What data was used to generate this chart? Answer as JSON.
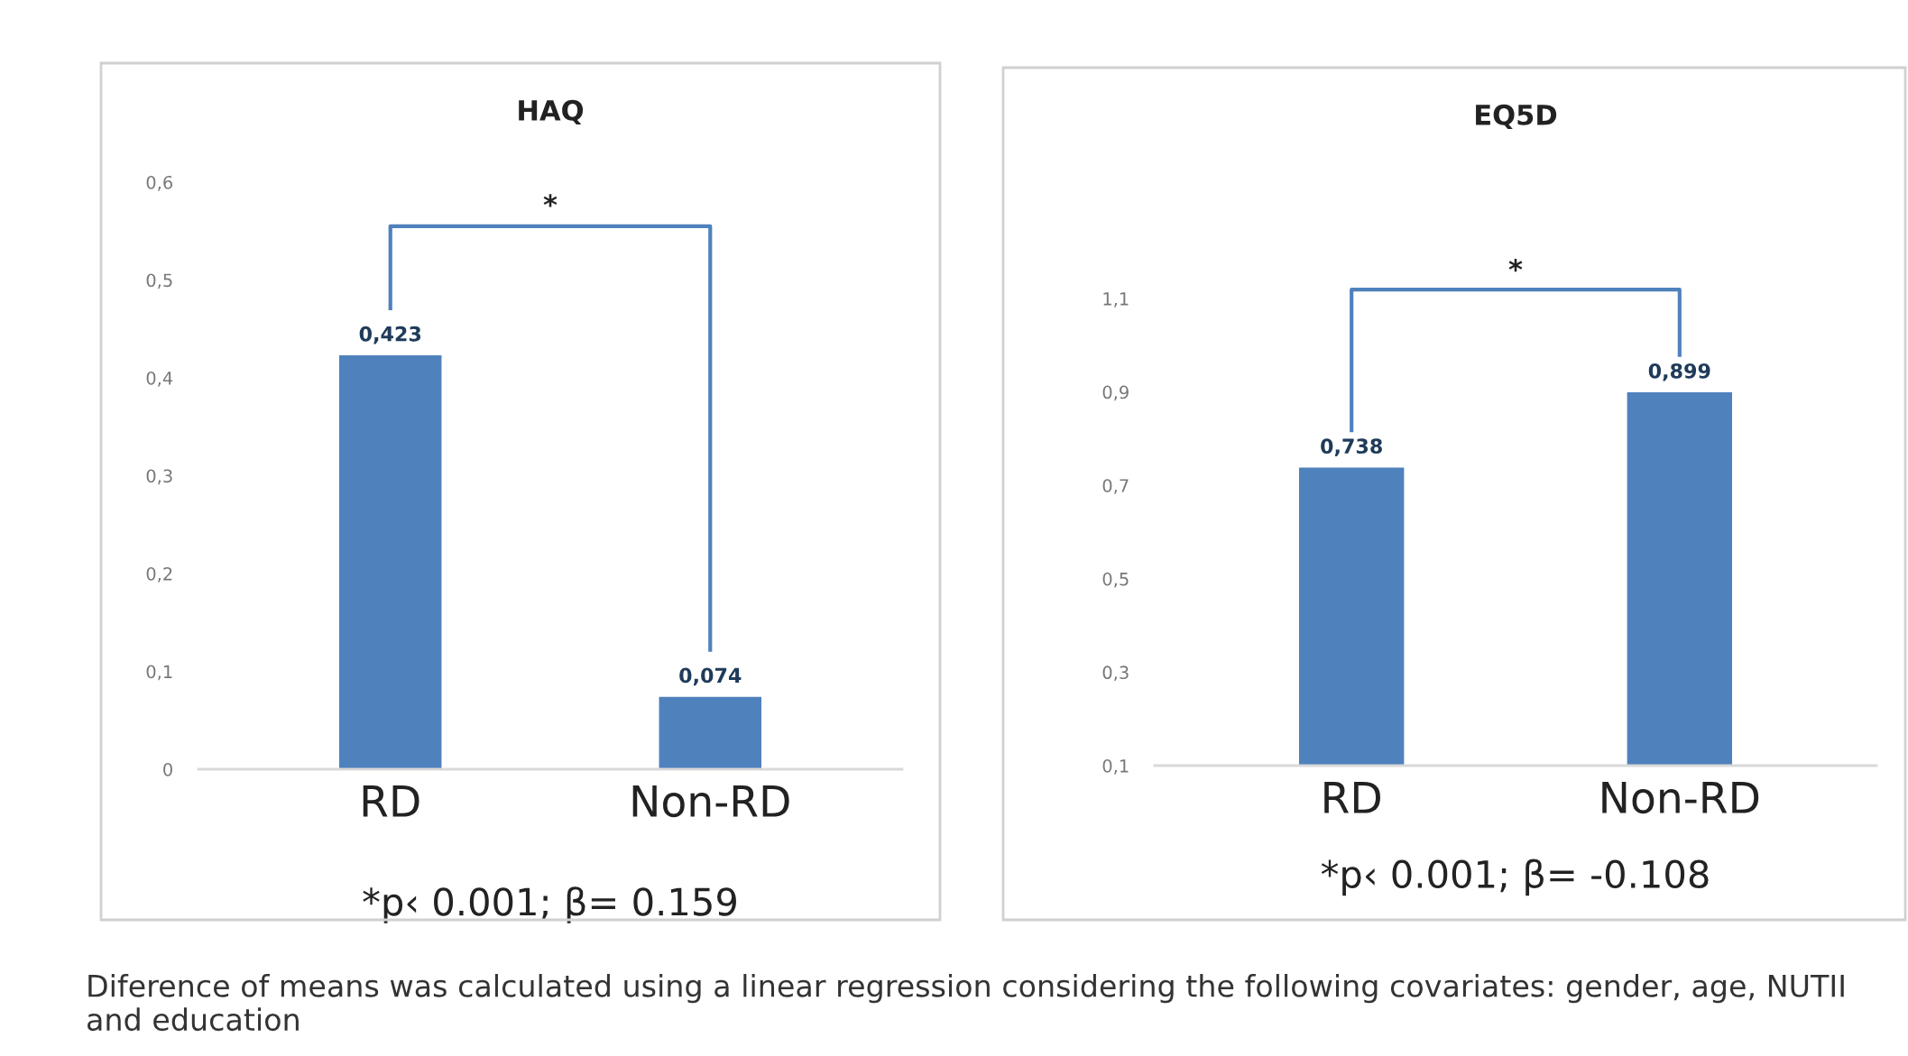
{
  "chart_data": [
    {
      "type": "bar",
      "title": "HAQ",
      "categories": [
        "RD",
        "Non-RD"
      ],
      "values": [
        0.423,
        0.074
      ],
      "color": "#4f81bd",
      "value_labels": [
        "0,423",
        "0,074"
      ],
      "ylim": [
        0,
        0.6
      ],
      "yticks": [
        {
          "value": 0,
          "label": "0"
        },
        {
          "value": 0.1,
          "label": "0,1"
        },
        {
          "value": 0.2,
          "label": "0,2"
        },
        {
          "value": 0.3,
          "label": "0,3"
        },
        {
          "value": 0.4,
          "label": "0,4"
        },
        {
          "value": 0.5,
          "label": "0,5"
        },
        {
          "value": 0.6,
          "label": "0,6"
        }
      ],
      "grid": false,
      "annotations": [
        "*",
        "*p‹ 0.001; β= 0.159",
        "Diference of means was calculated using a linear regression considering the following covariates: gender, age, NUTII and education"
      ]
    },
    {
      "type": "bar",
      "title": "EQ5D",
      "categories": [
        "RD",
        "Non-RD"
      ],
      "values": [
        0.738,
        0.899
      ],
      "color": "#4f81bd",
      "value_labels": [
        "0,738",
        "0,899"
      ],
      "ylim": [
        0.1,
        1.1
      ],
      "yticks": [
        {
          "value": 0.1,
          "label": "0,1"
        },
        {
          "value": 0.3,
          "label": "0,3"
        },
        {
          "value": 0.5,
          "label": "0,5"
        },
        {
          "value": 0.7,
          "label": "0,7"
        },
        {
          "value": 0.9,
          "label": "0,9"
        },
        {
          "value": 1.1,
          "label": "1,1"
        }
      ],
      "grid": false,
      "annotations": [
        "*",
        "*p‹ 0.001; β= -0.108"
      ]
    }
  ]
}
